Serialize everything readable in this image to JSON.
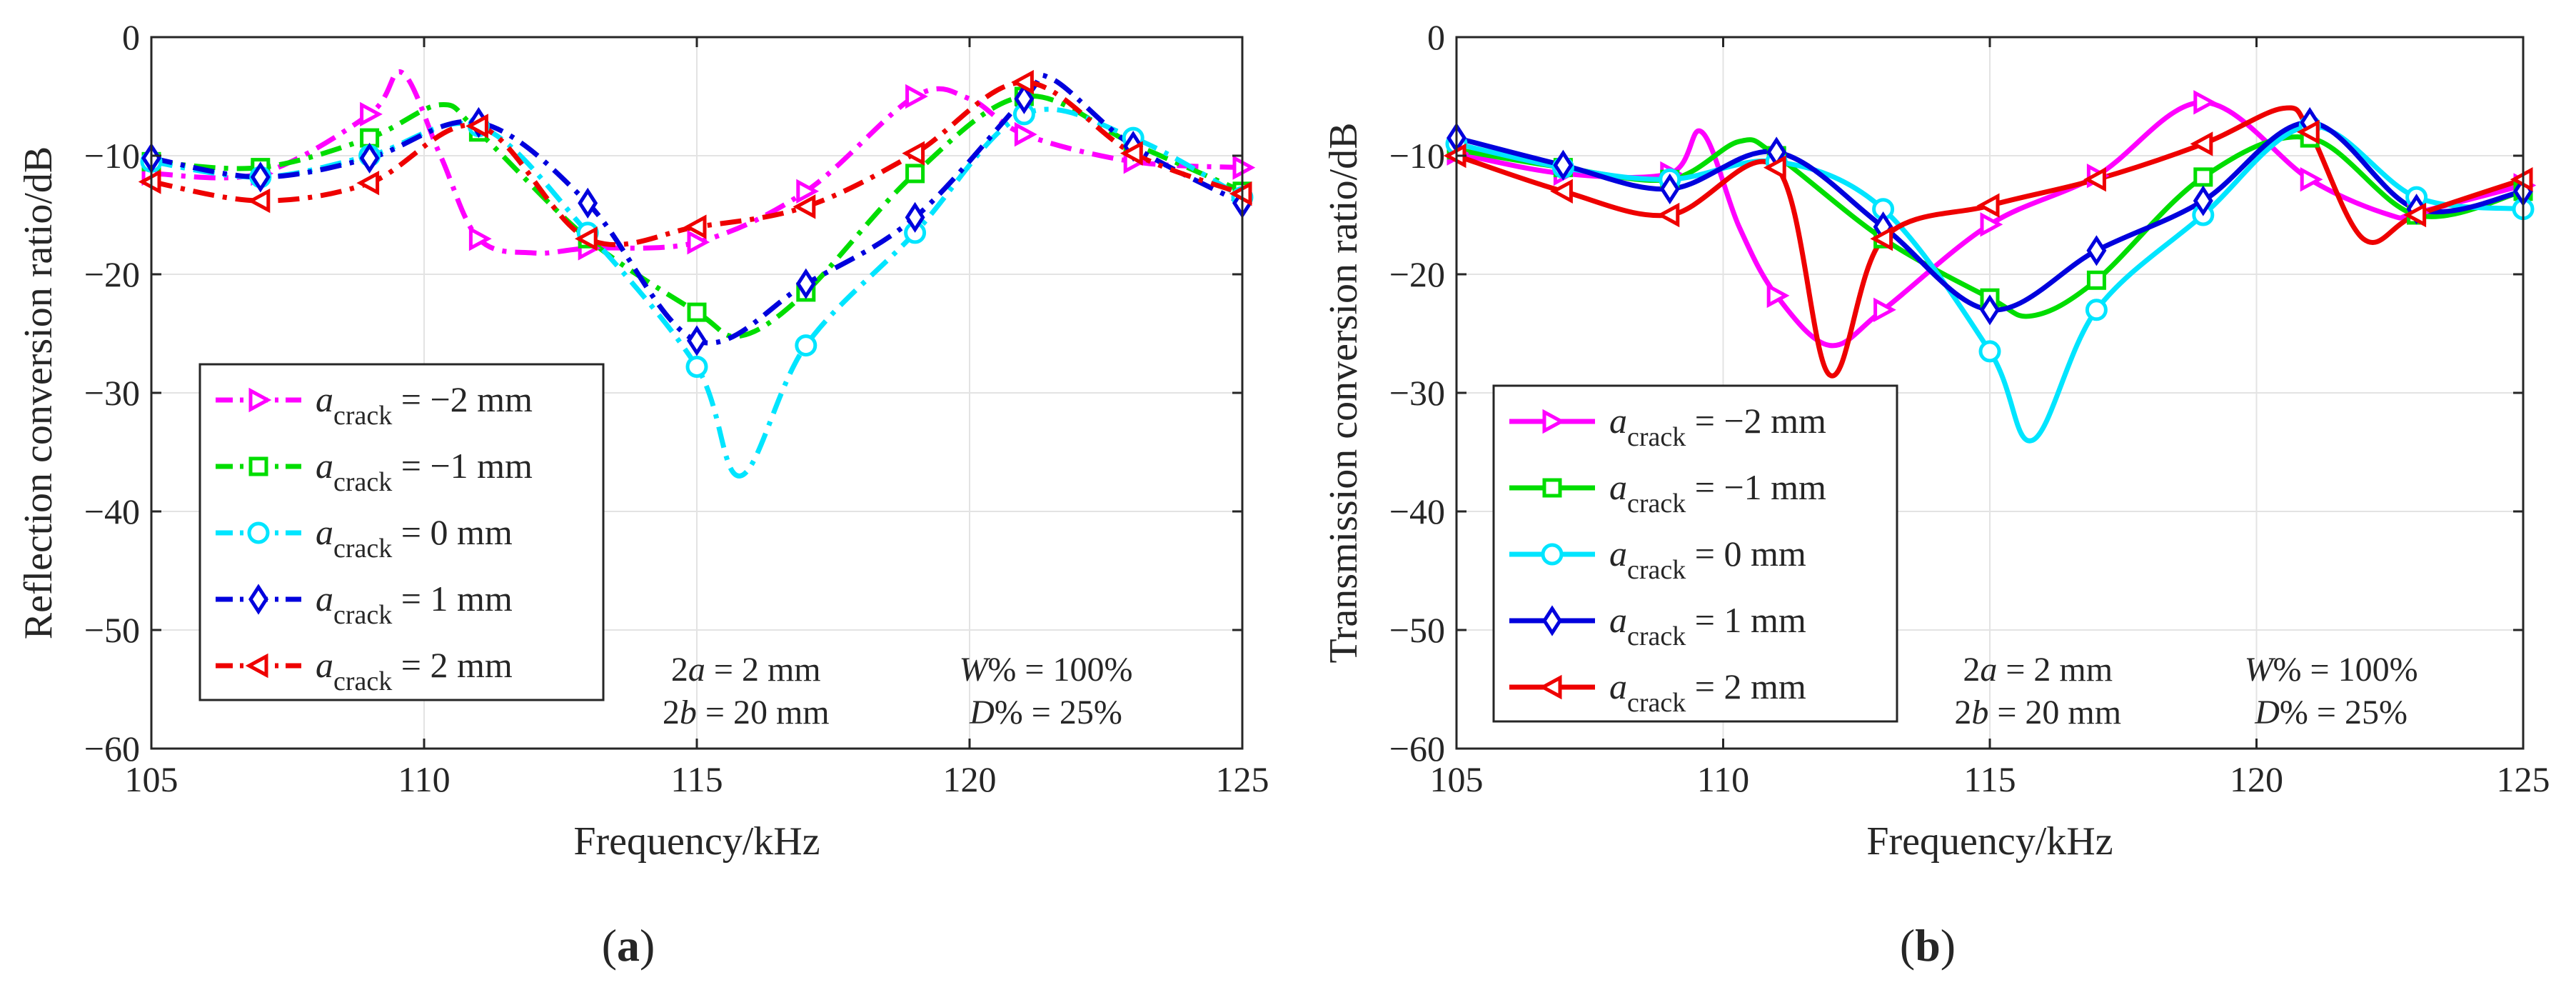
{
  "chart_data": [
    {
      "type": "line",
      "panel_label": "a",
      "ylabel": "Reflection conversion ratio/dB",
      "xlabel": "Frequency/kHz",
      "xlim": [
        105,
        125
      ],
      "ylim": [
        -60,
        0
      ],
      "grid": true,
      "line_style": "dashdot",
      "legend_location": "left-middle",
      "xticks": [
        105,
        110,
        115,
        120,
        125
      ],
      "yticks": [
        0,
        -10,
        -20,
        -30,
        -40,
        -50,
        -60
      ],
      "xtick_labels": [
        "105",
        "110",
        "115",
        "120",
        "125"
      ],
      "ytick_labels": [
        "0",
        "−10",
        "−20",
        "−30",
        "−40",
        "−50",
        "−60"
      ],
      "params_left": [
        "2a = 2 mm",
        "2b = 20 mm"
      ],
      "params_right": [
        "W% = 100%",
        "D% = 25%"
      ],
      "series": [
        {
          "name": "a_crack = −2 mm",
          "value_text": " = −2 mm",
          "color": "#ff00ff",
          "marker": "triangle-right",
          "x": [
            105,
            107,
            109,
            109.6,
            110.3,
            111,
            112,
            113,
            115,
            117,
            119,
            120,
            121,
            123,
            125
          ],
          "y": [
            -11.5,
            -11.5,
            -6.5,
            -3,
            -10,
            -17,
            -18.2,
            -17.8,
            -17.3,
            -13,
            -5,
            -5.2,
            -8.2,
            -10.5,
            -11
          ]
        },
        {
          "name": "a_crack = −1 mm",
          "value_text": " = −1 mm",
          "color": "#00dd00",
          "marker": "square",
          "x": [
            105,
            107,
            109,
            110.3,
            111,
            113,
            115,
            115.8,
            117,
            119,
            121,
            123,
            125
          ],
          "y": [
            -10.5,
            -11,
            -8.5,
            -5.7,
            -8,
            -17,
            -23.2,
            -25.2,
            -21.5,
            -11.5,
            -5,
            -9,
            -13
          ]
        },
        {
          "name": "a_crack = 0 mm",
          "value_text": " = 0 mm",
          "color": "#00e5ff",
          "marker": "circle",
          "x": [
            105,
            107,
            109,
            111,
            113,
            115,
            115.8,
            117,
            119,
            121,
            123,
            125
          ],
          "y": [
            -10.5,
            -11.8,
            -10,
            -7.5,
            -16.5,
            -27.8,
            -37,
            -26,
            -16.5,
            -6.5,
            -8.5,
            -13.5
          ]
        },
        {
          "name": "a_crack = 1 mm",
          "value_text": " = 1 mm",
          "color": "#0000dd",
          "marker": "diamond",
          "x": [
            105,
            107,
            109,
            111,
            113,
            115,
            117,
            119,
            121,
            121.5,
            123,
            125
          ],
          "y": [
            -10.2,
            -11.8,
            -10.2,
            -7.2,
            -14,
            -25.6,
            -20.8,
            -15.2,
            -5.2,
            -3.5,
            -9.2,
            -14
          ]
        },
        {
          "name": "a_crack = 2 mm",
          "value_text": " = 2 mm",
          "color": "#ee0000",
          "marker": "triangle-left",
          "x": [
            105,
            107,
            109,
            111,
            113,
            115,
            117,
            119,
            121,
            123,
            125
          ],
          "y": [
            -12.2,
            -13.8,
            -12.3,
            -7.5,
            -17,
            -16,
            -14.3,
            -9.8,
            -3.8,
            -9.8,
            -13.2
          ]
        }
      ]
    },
    {
      "type": "line",
      "panel_label": "b",
      "ylabel": "Transmission conversion ratio/dB",
      "xlabel": "Frequency/kHz",
      "xlim": [
        105,
        125
      ],
      "ylim": [
        -60,
        0
      ],
      "grid": true,
      "line_style": "solid",
      "legend_location": "left-middle",
      "xticks": [
        105,
        110,
        115,
        120,
        125
      ],
      "yticks": [
        0,
        -10,
        -20,
        -30,
        -40,
        -50,
        -60
      ],
      "xtick_labels": [
        "105",
        "110",
        "115",
        "120",
        "125"
      ],
      "ytick_labels": [
        "0",
        "−10",
        "−20",
        "−30",
        "−40",
        "−50",
        "−60"
      ],
      "params_left": [
        "2a = 2 mm",
        "2b = 20 mm"
      ],
      "params_right": [
        "W% = 100%",
        "D% = 25%"
      ],
      "series": [
        {
          "name": "a_crack = −2 mm",
          "value_text": " = −2 mm",
          "color": "#ff00ff",
          "marker": "triangle-right",
          "x": [
            105,
            107,
            109,
            109.6,
            110.3,
            111,
            112,
            113,
            115,
            117,
            119,
            121,
            122.5,
            123,
            125
          ],
          "y": [
            -9.8,
            -11.5,
            -11.5,
            -8,
            -16,
            -21.8,
            -26,
            -23,
            -15.8,
            -11.7,
            -5.5,
            -12,
            -15,
            -14.8,
            -12.5
          ]
        },
        {
          "name": "a_crack = −1 mm",
          "value_text": " = −1 mm",
          "color": "#00dd00",
          "marker": "square",
          "x": [
            105,
            107,
            109,
            110.3,
            111,
            113,
            115,
            115.8,
            117,
            119,
            121,
            123,
            125
          ],
          "y": [
            -9.5,
            -11,
            -12,
            -8.8,
            -10,
            -17,
            -22,
            -23.5,
            -20.5,
            -11.8,
            -8.5,
            -15,
            -13
          ]
        },
        {
          "name": "a_crack = 0 mm",
          "value_text": " = 0 mm",
          "color": "#00e5ff",
          "marker": "circle",
          "x": [
            105,
            107,
            109,
            111,
            113,
            115,
            115.8,
            117,
            119,
            121,
            123,
            125
          ],
          "y": [
            -9,
            -11,
            -12,
            -10.5,
            -14.5,
            -26.5,
            -34,
            -23,
            -15,
            -7.5,
            -13.5,
            -14.5
          ]
        },
        {
          "name": "a_crack = 1 mm",
          "value_text": " = 1 mm",
          "color": "#0000dd",
          "marker": "diamond",
          "x": [
            105,
            107,
            109,
            111,
            113,
            115,
            117,
            119,
            121,
            123,
            125
          ],
          "y": [
            -8.5,
            -10.8,
            -12.8,
            -9.7,
            -16,
            -23,
            -18,
            -13.8,
            -7.2,
            -14.5,
            -13
          ]
        },
        {
          "name": "a_crack = 2 mm",
          "value_text": " = 2 mm",
          "color": "#ee0000",
          "marker": "triangle-left",
          "x": [
            105,
            107,
            109,
            111,
            112,
            113,
            115,
            117,
            119,
            120.5,
            121,
            122,
            123,
            125
          ],
          "y": [
            -10,
            -13,
            -15,
            -11,
            -28.5,
            -17,
            -14.2,
            -12,
            -9,
            -6,
            -8,
            -17,
            -15,
            -12
          ]
        }
      ]
    }
  ]
}
